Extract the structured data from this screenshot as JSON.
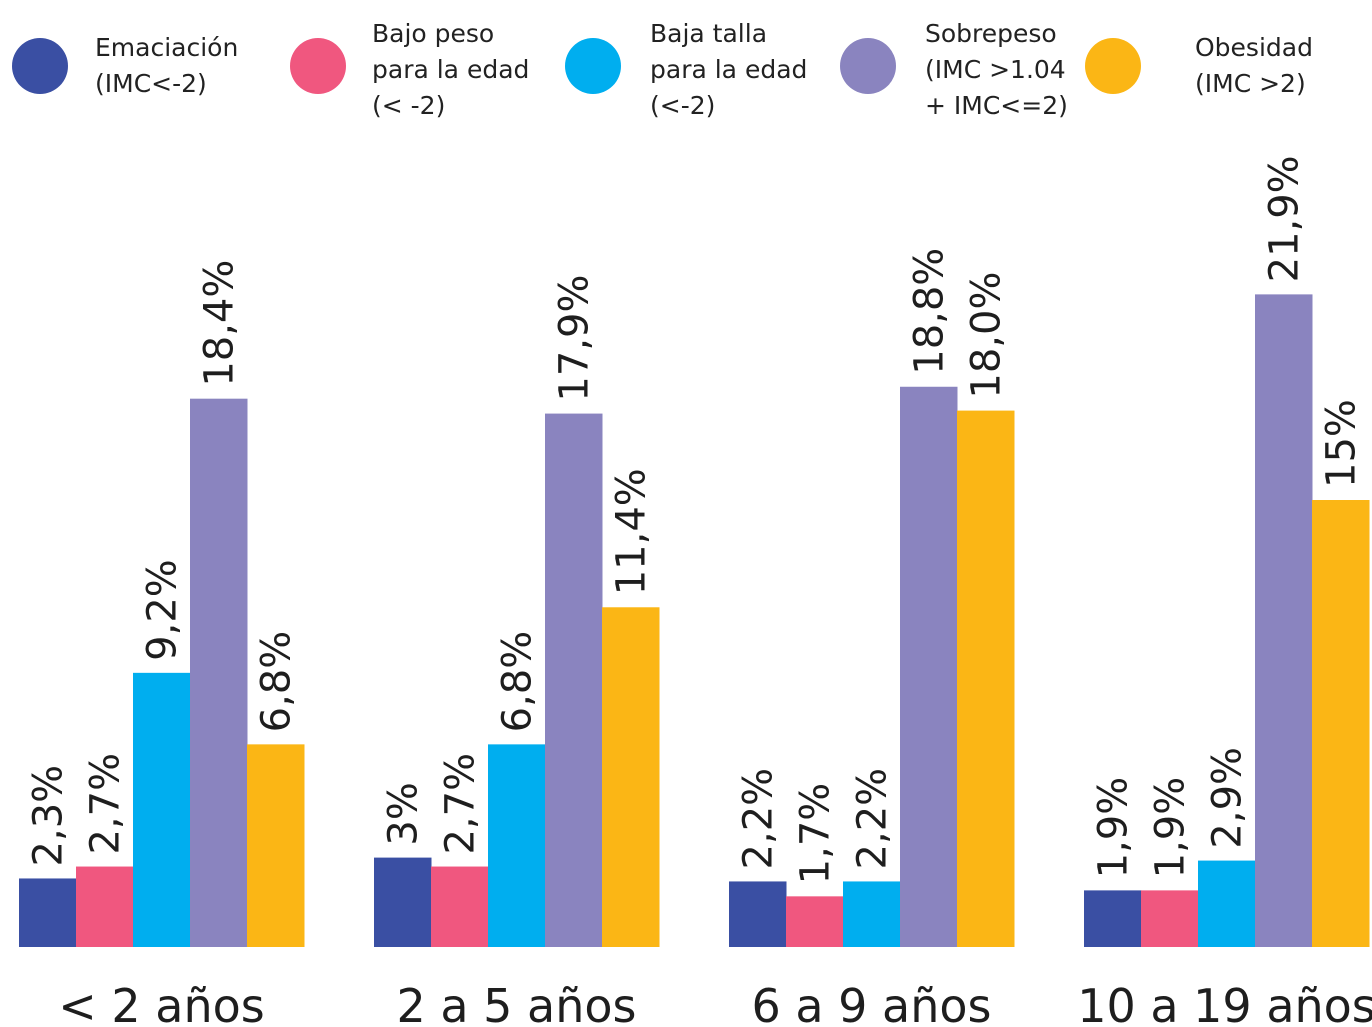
{
  "chart_data": {
    "type": "bar",
    "categories": [
      "< 2 años",
      "2 a 5 años",
      "6 a 9 años",
      "10 a 19 años"
    ],
    "series": [
      {
        "name": "Emaciación (IMC<-2)",
        "legend_lines": [
          "Emaciación",
          "(IMC<-2)"
        ],
        "color": "#3a4fa3",
        "values": [
          2.3,
          3.0,
          2.2,
          1.9
        ],
        "labels": [
          "2,3%",
          "3%",
          "2,2%",
          "1,9%"
        ]
      },
      {
        "name": "Bajo peso para la edad (< -2)",
        "legend_lines": [
          "Bajo peso",
          "para la edad",
          "(< -2)"
        ],
        "color": "#f0577f",
        "values": [
          2.7,
          2.7,
          1.7,
          1.9
        ],
        "labels": [
          "2,7%",
          "2,7%",
          "1,7%",
          "1,9%"
        ]
      },
      {
        "name": "Baja talla para la edad (<-2)",
        "legend_lines": [
          "Baja talla",
          "para la edad",
          "(<-2)"
        ],
        "color": "#00aeef",
        "values": [
          9.2,
          6.8,
          2.2,
          2.9
        ],
        "labels": [
          "9,2%",
          "6,8%",
          "2,2%",
          "2,9%"
        ]
      },
      {
        "name": "Sobrepeso (IMC >1.04 + IMC<=2)",
        "legend_lines": [
          "Sobrepeso",
          "(IMC >1.04",
          "+ IMC<=2)"
        ],
        "color": "#8a84bf",
        "values": [
          18.4,
          17.9,
          18.8,
          21.9
        ],
        "labels": [
          "18,4%",
          "17,9%",
          "18,8%",
          "21,9%"
        ]
      },
      {
        "name": "Obesidad (IMC >2)",
        "legend_lines": [
          "Obesidad",
          "(IMC >2)"
        ],
        "color": "#fbb615",
        "values": [
          6.8,
          11.4,
          18.0,
          15.0
        ],
        "labels": [
          "6,8%",
          "11,4%",
          "18,0%",
          "15%"
        ]
      }
    ],
    "ylim": [
      0,
      22
    ],
    "grid": false,
    "legend_position": "top"
  }
}
